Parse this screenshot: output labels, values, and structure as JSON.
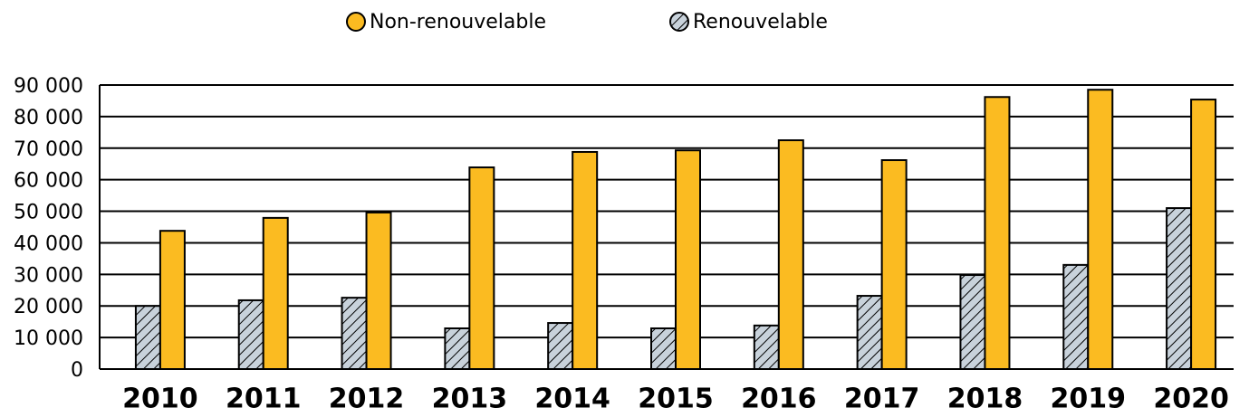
{
  "chart_data": {
    "type": "bar",
    "categories": [
      "2010",
      "2011",
      "2012",
      "2013",
      "2014",
      "2015",
      "2016",
      "2017",
      "2018",
      "2019",
      "2020"
    ],
    "series": [
      {
        "name": "Renouvelable",
        "color": "#c8d2db",
        "pattern": "hatch",
        "values": [
          20000,
          21800,
          22600,
          12900,
          14600,
          12900,
          13800,
          23200,
          29800,
          33000,
          51000
        ]
      },
      {
        "name": "Non-renouvelable",
        "color": "#fbbb21",
        "values": [
          43800,
          47900,
          49600,
          63900,
          68800,
          69300,
          72500,
          66200,
          86200,
          88500,
          85400
        ]
      }
    ],
    "legend_order": [
      1,
      0
    ],
    "ylim": [
      0,
      90000
    ],
    "yticks": [
      {
        "value": 0,
        "label": "0"
      },
      {
        "value": 10000,
        "label": "10 000"
      },
      {
        "value": 20000,
        "label": "20 000"
      },
      {
        "value": 30000,
        "label": "30 000"
      },
      {
        "value": 40000,
        "label": "40 000"
      },
      {
        "value": 50000,
        "label": "50 000"
      },
      {
        "value": 60000,
        "label": "60 000"
      },
      {
        "value": 70000,
        "label": "70 000"
      },
      {
        "value": 80000,
        "label": "80 000"
      },
      {
        "value": 90000,
        "label": "90 000"
      }
    ],
    "grid": true
  }
}
